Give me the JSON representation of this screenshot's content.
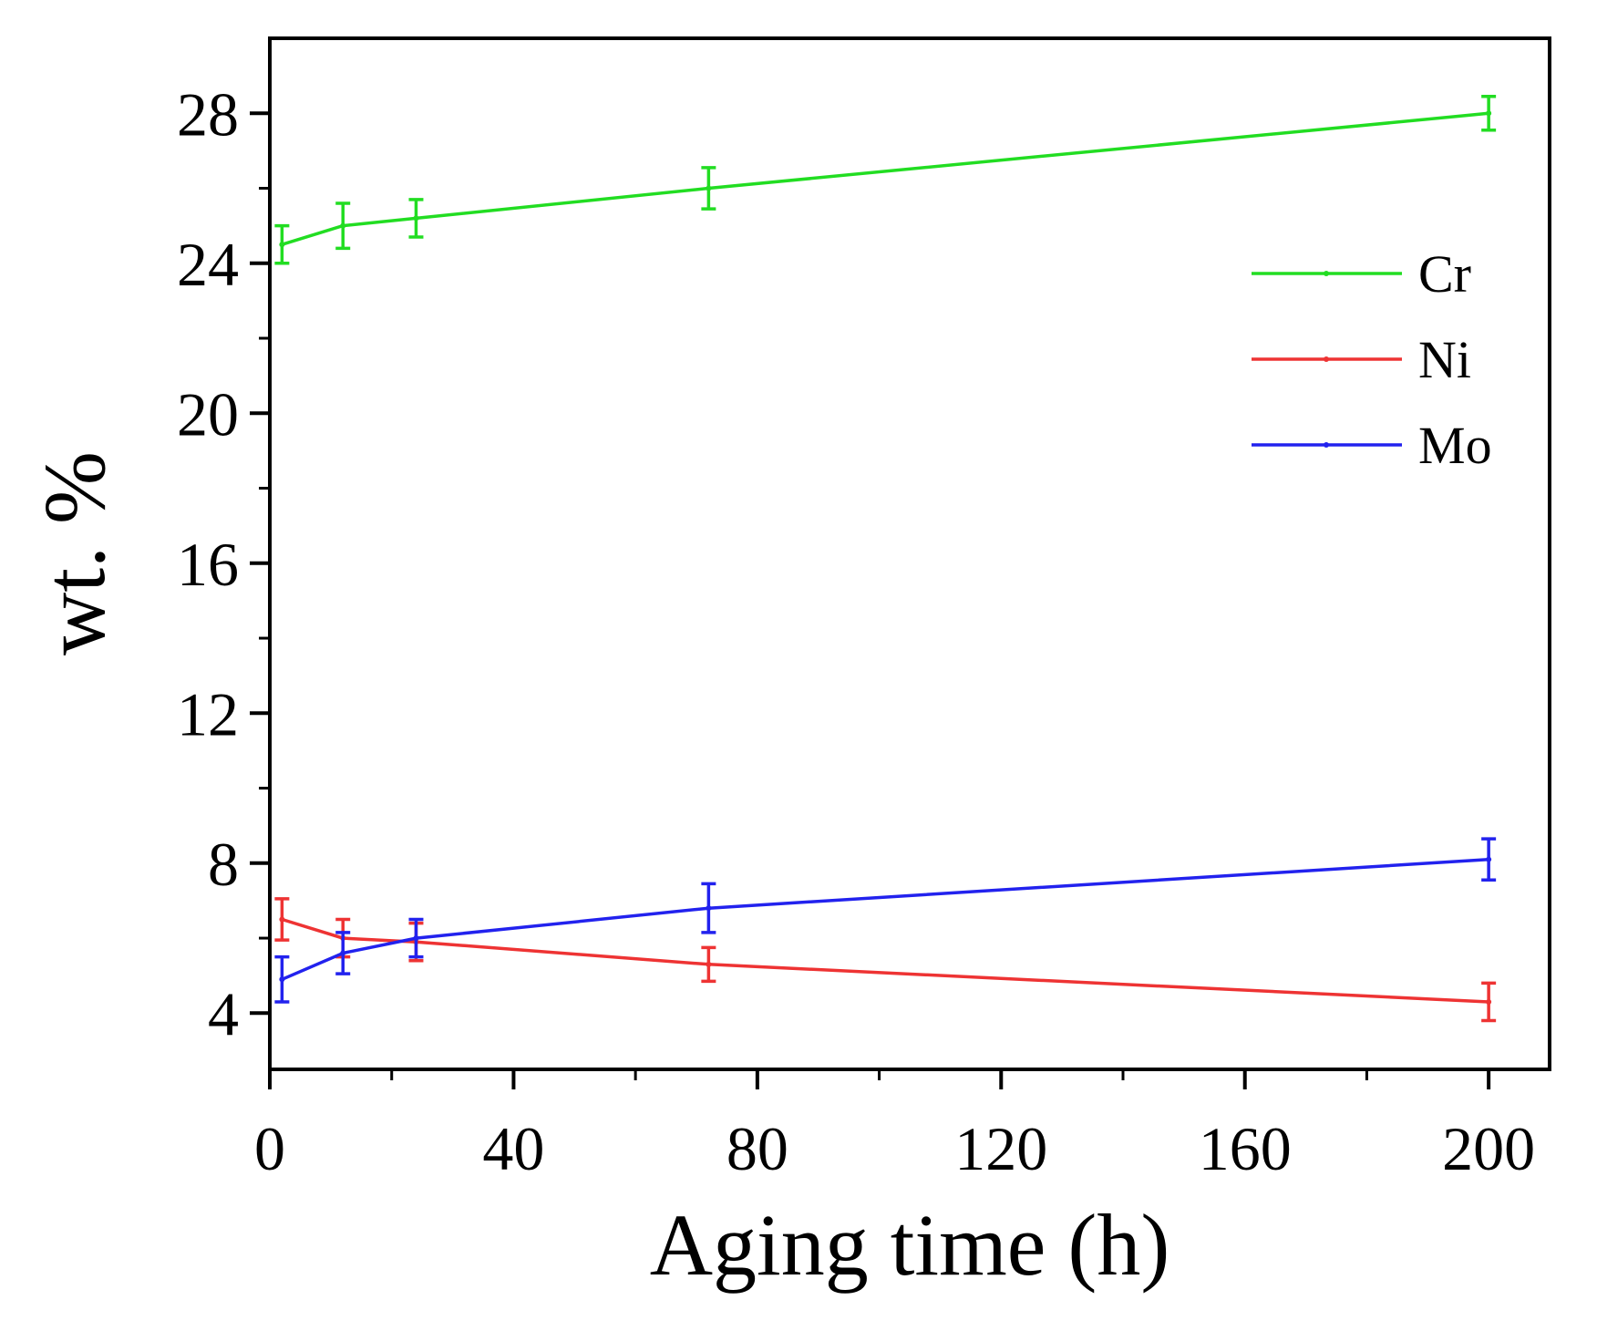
{
  "chart_data": {
    "type": "line",
    "xlabel": "Aging time (h)",
    "ylabel": "wt. %",
    "xlim": [
      0,
      210
    ],
    "ylim": [
      2.5,
      30
    ],
    "xticks": [
      0,
      40,
      80,
      120,
      160,
      200
    ],
    "xtick_labels": [
      "0",
      "40",
      "80",
      "120",
      "160",
      "200"
    ],
    "yticks": [
      4,
      8,
      12,
      16,
      20,
      24,
      28
    ],
    "ytick_labels": [
      "4",
      "8",
      "12",
      "16",
      "20",
      "24",
      "28"
    ],
    "grid": false,
    "legend_position": "top-right",
    "x": [
      2,
      12,
      24,
      72,
      200
    ],
    "series": [
      {
        "name": "Cr",
        "color": "#22dd22",
        "values": [
          24.5,
          25.0,
          25.2,
          26.0,
          28.0
        ],
        "errors": [
          0.5,
          0.6,
          0.5,
          0.55,
          0.45
        ]
      },
      {
        "name": "Ni",
        "color": "#ee3333",
        "values": [
          6.5,
          6.0,
          5.9,
          5.3,
          4.3
        ],
        "errors": [
          0.55,
          0.5,
          0.5,
          0.45,
          0.5
        ]
      },
      {
        "name": "Mo",
        "color": "#2222ee",
        "values": [
          4.9,
          5.6,
          6.0,
          6.8,
          8.1
        ],
        "errors": [
          0.6,
          0.55,
          0.5,
          0.65,
          0.55
        ]
      }
    ]
  }
}
